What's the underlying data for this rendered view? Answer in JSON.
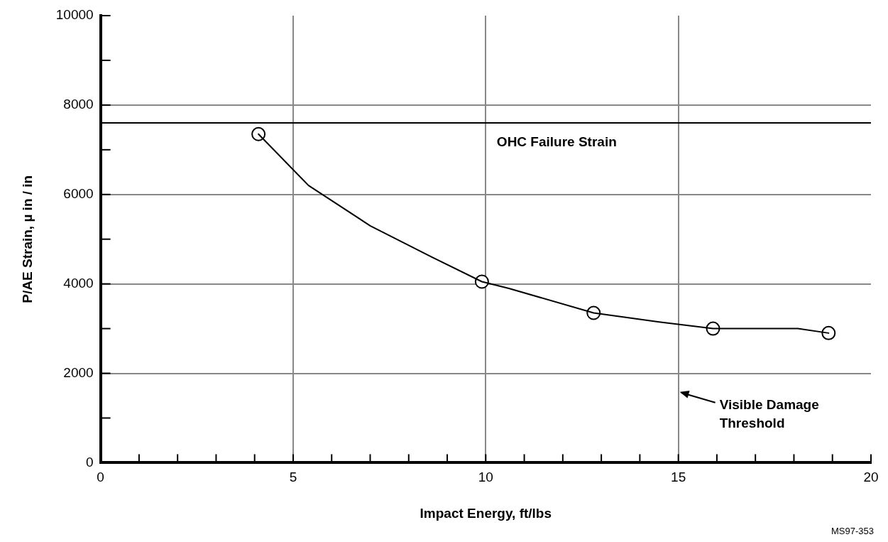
{
  "chart_data": {
    "type": "line",
    "xlabel": "Impact Energy, ft/lbs",
    "ylabel": "P/AE Strain, µ in / in",
    "xlim": [
      0,
      20
    ],
    "ylim": [
      0,
      10000
    ],
    "xticks": [
      0,
      {
        "value": 1,
        "label": null
      },
      {
        "value": 2,
        "label": null
      },
      {
        "value": 3,
        "label": null
      },
      {
        "value": 4,
        "label": null
      },
      5,
      {
        "value": 6,
        "label": null
      },
      {
        "value": 7,
        "label": null
      },
      {
        "value": 8,
        "label": null
      },
      {
        "value": 9,
        "label": null
      },
      10,
      {
        "value": 11,
        "label": null
      },
      {
        "value": 12,
        "label": null
      },
      {
        "value": 13,
        "label": null
      },
      {
        "value": 14,
        "label": null
      },
      15,
      {
        "value": 16,
        "label": null
      },
      {
        "value": 17,
        "label": null
      },
      {
        "value": 18,
        "label": null
      },
      {
        "value": 19,
        "label": null
      },
      20
    ],
    "yticks": [
      0,
      {
        "value": 1000,
        "label": null
      },
      2000,
      {
        "value": 3000,
        "label": null
      },
      4000,
      {
        "value": 5000,
        "label": null
      },
      6000,
      {
        "value": 7000,
        "label": null
      },
      8000,
      {
        "value": 9000,
        "label": null
      },
      10000
    ],
    "grid": true,
    "legend": false,
    "series": [
      {
        "type": "line",
        "color": "#000000",
        "marker": "none",
        "x": [
          4.1,
          5.4,
          7.0,
          8.6,
          9.9,
          10.6,
          12.8,
          14.5,
          15.9,
          17.2,
          18.1,
          18.9
        ],
        "values": [
          7350,
          6200,
          5300,
          4600,
          4050,
          3900,
          3350,
          3150,
          3000,
          3000,
          3000,
          2900
        ]
      },
      {
        "type": "scatter",
        "color": "#000000",
        "marker": "circle",
        "x": [
          4.1,
          9.9,
          12.8,
          15.9,
          18.9
        ],
        "values": [
          7350,
          4050,
          3350,
          3000,
          2900
        ]
      }
    ],
    "ref_lines": [
      {
        "axis": "y",
        "value": 7600,
        "label": "OHC Failure Strain",
        "color": "#000000"
      }
    ],
    "annotations": [
      "Visible Damage Threshold",
      "MS97-353"
    ]
  }
}
